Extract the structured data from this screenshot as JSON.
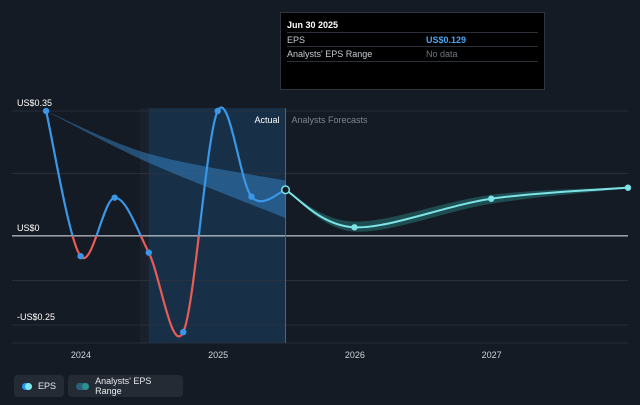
{
  "chart_data": {
    "type": "line",
    "title": "",
    "y_ticks": [
      {
        "label": "US$0.35",
        "value": 0.35
      },
      {
        "label": "US$0",
        "value": 0
      },
      {
        "label": "-US$0.25",
        "value": -0.25
      }
    ],
    "ylim": [
      -0.25,
      0.35
    ],
    "x_ticks": [
      "2024",
      "2025",
      "2026",
      "2027"
    ],
    "xlim": [
      "2023-07-01",
      "2027-12-31"
    ],
    "section_labels": {
      "actual": "Actual",
      "forecast": "Analysts Forecasts"
    },
    "highlight_range": [
      "2024-06-30",
      "2025-06-30"
    ],
    "grid": true,
    "series": [
      {
        "name": "EPS",
        "color": "#3a97e8",
        "negative_color": "#e95b56",
        "x": [
          "2023-09-30",
          "2023-12-31",
          "2024-03-31",
          "2024-06-30",
          "2024-09-30",
          "2024-12-31",
          "2025-03-31",
          "2025-06-30"
        ],
        "values": [
          0.35,
          -0.057,
          0.107,
          -0.047,
          -0.27,
          0.35,
          0.11,
          0.129
        ]
      },
      {
        "name": "EPS forecast",
        "color": "#7de3e6",
        "x": [
          "2025-06-30",
          "2025-12-31",
          "2026-12-31",
          "2027-12-31"
        ],
        "values": [
          0.129,
          0.024,
          0.104,
          0.135
        ]
      }
    ],
    "range_band_actual": {
      "color": "#3a8fd6",
      "x": [
        "2023-09-30",
        "2024-06-30",
        "2025-06-30"
      ],
      "upper": [
        0.35,
        0.23,
        0.155
      ],
      "lower": [
        0.35,
        0.205,
        0.05
      ]
    },
    "range_band_forecast": {
      "color": "#1f5a5c",
      "x": [
        "2025-06-30",
        "2025-12-31",
        "2026-12-31",
        "2027-12-31"
      ],
      "upper": [
        0.129,
        0.04,
        0.115,
        0.137
      ],
      "lower": [
        0.129,
        0.012,
        0.09,
        0.133
      ]
    }
  },
  "tooltip": {
    "date": "Jun 30 2025",
    "eps_label": "EPS",
    "eps_value": "US$0.129",
    "range_label": "Analysts' EPS Range",
    "range_value": "No data"
  },
  "legend": {
    "eps_label": "EPS",
    "range_label": "Analysts' EPS Range"
  }
}
